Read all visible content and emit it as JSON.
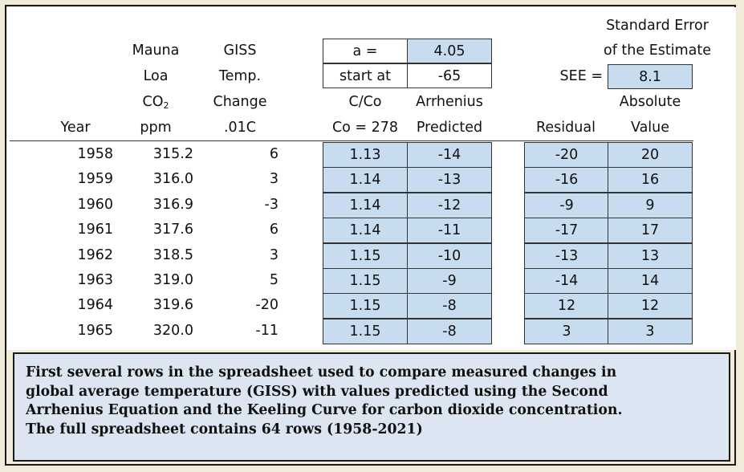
{
  "headers": {
    "year": "Year",
    "mauna": [
      "Mauna",
      "Loa",
      "CO",
      "ppm"
    ],
    "mauna_sub": "2",
    "giss": [
      "GISS",
      "Temp.",
      "Change",
      ".01C"
    ],
    "cco": [
      "C/Co",
      "Co = 278"
    ],
    "arrhenius": [
      "Arrhenius",
      "Predicted"
    ],
    "residual": "Residual",
    "see_title": [
      "Standard Error",
      "of the Estimate"
    ],
    "absolute": [
      "Absolute",
      "Value"
    ]
  },
  "params": {
    "a_label": "a =",
    "a_value": "4.05",
    "start_label": "start at",
    "start_value": "-65",
    "see_label": "SEE =",
    "see_value": "8.1"
  },
  "rows": [
    {
      "year": "1958",
      "co2": "315.2",
      "giss": "6",
      "cco": "1.13",
      "pred": "-14",
      "resid": "-20",
      "abs": "20"
    },
    {
      "year": "1959",
      "co2": "316.0",
      "giss": "3",
      "cco": "1.14",
      "pred": "-13",
      "resid": "-16",
      "abs": "16"
    },
    {
      "year": "1960",
      "co2": "316.9",
      "giss": "-3",
      "cco": "1.14",
      "pred": "-12",
      "resid": "-9",
      "abs": "9"
    },
    {
      "year": "1961",
      "co2": "317.6",
      "giss": "6",
      "cco": "1.14",
      "pred": "-11",
      "resid": "-17",
      "abs": "17"
    },
    {
      "year": "1962",
      "co2": "318.5",
      "giss": "3",
      "cco": "1.15",
      "pred": "-10",
      "resid": "-13",
      "abs": "13"
    },
    {
      "year": "1963",
      "co2": "319.0",
      "giss": "5",
      "cco": "1.15",
      "pred": "-9",
      "resid": "-14",
      "abs": "14"
    },
    {
      "year": "1964",
      "co2": "319.6",
      "giss": "-20",
      "cco": "1.15",
      "pred": "-8",
      "resid": "12",
      "abs": "12"
    },
    {
      "year": "1965",
      "co2": "320.0",
      "giss": "-11",
      "cco": "1.15",
      "pred": "-8",
      "resid": "3",
      "abs": "3"
    }
  ],
  "caption": [
    "First several rows in the spreadsheet used to compare measured changes in",
    "global average temperature (GISS) with values predicted using the Second",
    "Arrhenius Equation and the Keeling Curve for carbon dioxide concentration.",
    "The full spreadsheet contains 64 rows (1958-2021)"
  ],
  "colors": {
    "cell_blue": "#c7dcef",
    "caption_bg": "#dce6f2",
    "outer_bg": "#f1ecd9"
  }
}
